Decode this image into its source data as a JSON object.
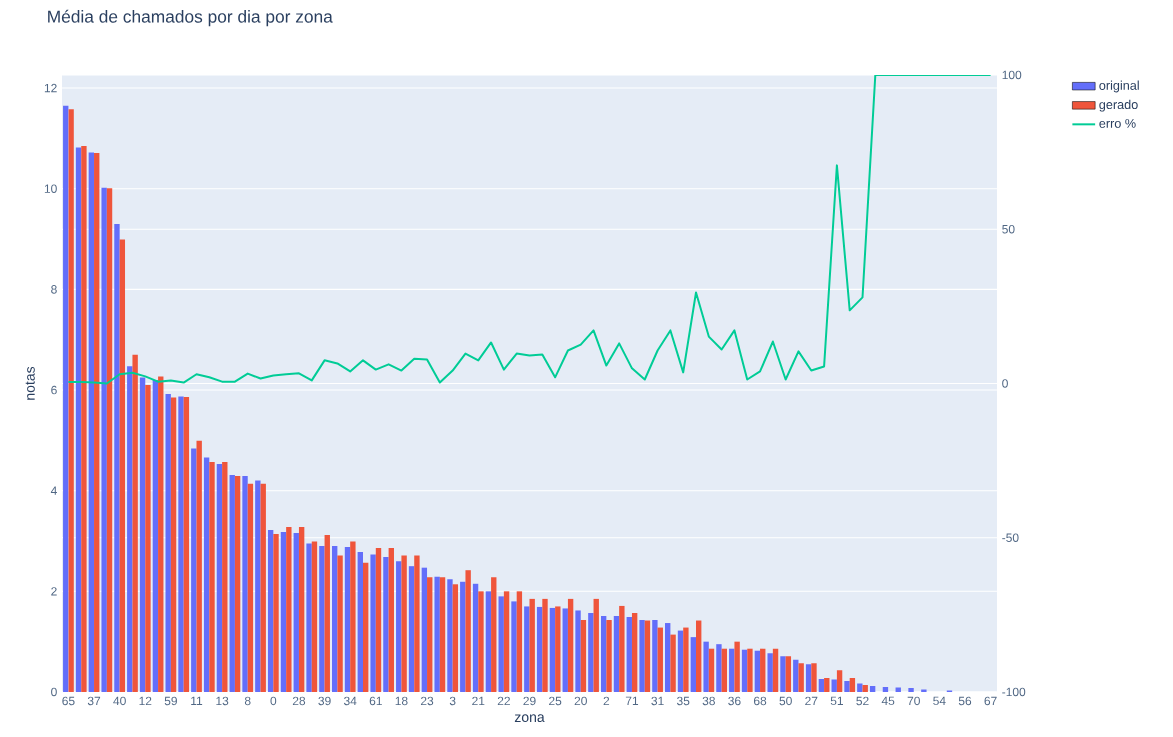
{
  "chart_data": {
    "type": "bar",
    "title": "Média de chamados por dia por zona",
    "xlabel": "zona",
    "ylabel": "notas",
    "categories": [
      "65",
      null,
      "37",
      null,
      "40",
      null,
      "12",
      null,
      "59",
      null,
      "11",
      null,
      "13",
      null,
      "8",
      null,
      "0",
      null,
      "28",
      null,
      "39",
      null,
      "34",
      null,
      "61",
      null,
      "18",
      null,
      "23",
      null,
      "3",
      null,
      "21",
      null,
      "22",
      null,
      "29",
      null,
      "25",
      null,
      "20",
      null,
      "2",
      null,
      "71",
      null,
      "31",
      null,
      "35",
      null,
      "38",
      null,
      "36",
      null,
      "68",
      null,
      "50",
      null,
      "27",
      null,
      "51",
      null,
      "52",
      null,
      "45",
      null,
      "70",
      null,
      "54",
      null,
      "56",
      null,
      "67"
    ],
    "series": [
      {
        "name": "original",
        "color": "#636efa",
        "values": [
          11.65,
          10.82,
          10.72,
          10.02,
          9.3,
          6.47,
          6.25,
          6.2,
          5.92,
          5.87,
          4.84,
          4.66,
          4.53,
          4.31,
          4.29,
          4.2,
          3.22,
          3.18,
          3.16,
          2.95,
          2.9,
          2.9,
          2.88,
          2.78,
          2.73,
          2.68,
          2.6,
          2.5,
          2.47,
          2.29,
          2.24,
          2.19,
          2.15,
          2.0,
          1.9,
          1.8,
          1.7,
          1.69,
          1.67,
          1.66,
          1.62,
          1.57,
          1.51,
          1.51,
          1.49,
          1.43,
          1.43,
          1.37,
          1.22,
          1.09,
          1.0,
          0.95,
          0.86,
          0.84,
          0.82,
          0.77,
          0.71,
          0.64,
          0.55,
          0.26,
          0.25,
          0.22,
          0.17,
          0.12,
          0.1,
          0.09,
          0.08,
          0.05,
          null,
          0.03,
          null,
          null,
          null
        ]
      },
      {
        "name": "gerado",
        "color": "#ef553b",
        "values": [
          11.58,
          10.85,
          10.71,
          10.01,
          8.99,
          6.7,
          6.1,
          6.27,
          5.85,
          5.86,
          4.99,
          4.57,
          4.57,
          4.29,
          4.14,
          4.14,
          3.14,
          3.28,
          3.28,
          2.99,
          3.12,
          2.71,
          2.99,
          2.57,
          2.86,
          2.86,
          2.71,
          2.71,
          2.28,
          2.28,
          2.14,
          2.42,
          2.0,
          2.28,
          2.0,
          2.0,
          1.85,
          1.85,
          1.7,
          1.85,
          1.43,
          1.85,
          1.43,
          1.71,
          1.57,
          1.42,
          1.28,
          1.14,
          1.28,
          1.42,
          0.86,
          0.86,
          1.0,
          0.86,
          0.86,
          0.86,
          0.71,
          0.57,
          0.57,
          0.28,
          0.43,
          0.28,
          0.14,
          0,
          0,
          0,
          0,
          0,
          0,
          0,
          0,
          0,
          0
        ]
      },
      {
        "name": "erro %",
        "type": "line",
        "axis": "y2",
        "color": "#00cc96",
        "values": [
          0.5,
          0.5,
          0.3,
          0,
          3,
          3.5,
          2.3,
          0.6,
          1,
          0.3,
          3,
          2,
          0.6,
          0.6,
          3.2,
          1.6,
          2.6,
          3,
          3.3,
          1,
          7.5,
          6.5,
          3.9,
          7.5,
          4.5,
          6.2,
          4.2,
          8,
          7.8,
          0.3,
          4.2,
          9.7,
          7.5,
          13.3,
          4.5,
          9.7,
          9.1,
          9.4,
          2,
          10.7,
          12.6,
          17.2,
          5.8,
          13,
          4.9,
          1.3,
          10.7,
          17.2,
          3.6,
          29.5,
          15.2,
          11,
          17.2,
          1.3,
          3.9,
          13.6,
          1.3,
          10.4,
          4.2,
          5.5,
          70.7,
          23.7,
          27.9,
          100,
          100,
          100,
          100,
          100,
          100,
          100,
          100,
          100,
          100
        ]
      }
    ],
    "ylim": [
      0,
      12.26
    ],
    "yticks": [
      0,
      2,
      4,
      6,
      8,
      10,
      12
    ],
    "y2lim": [
      -100,
      100
    ],
    "y2ticks": [
      -100,
      -50,
      0,
      50,
      100
    ],
    "grid": "y",
    "legend": "top right"
  }
}
